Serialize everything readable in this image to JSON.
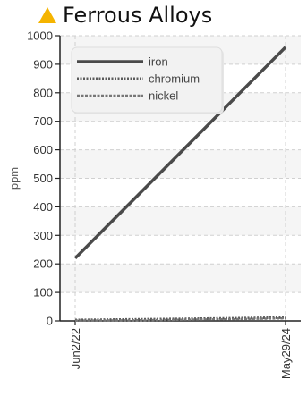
{
  "chart_data": {
    "type": "line",
    "title": "Ferrous Alloys",
    "title_icon": "warning-triangle-icon",
    "title_icon_color": "#f5b400",
    "ylabel": "ppm",
    "xlabel": "",
    "ylim": [
      0,
      1000
    ],
    "yticks": [
      0,
      100,
      200,
      300,
      400,
      500,
      600,
      700,
      800,
      900,
      1000
    ],
    "x_range": [
      "2022-06-02",
      "2024-05-29"
    ],
    "x_tick_labels": [
      "Jun2/22",
      "May29/24"
    ],
    "grid": true,
    "legend_position": "top-left",
    "series": [
      {
        "name": "iron",
        "color": "#4a4a4a",
        "style": "solid",
        "x": [
          "2022-06-02",
          "2024-05-29"
        ],
        "y": [
          220,
          960
        ]
      },
      {
        "name": "chromium",
        "color": "#5a5a5a",
        "style": "dotted",
        "x": [
          "2022-06-02",
          "2022-12-01",
          "2023-06-01",
          "2023-12-01",
          "2024-05-29"
        ],
        "y": [
          3,
          5,
          7,
          9,
          12
        ]
      },
      {
        "name": "nickel",
        "color": "#777777",
        "style": "dashed",
        "x": [
          "2022-06-02",
          "2022-12-01",
          "2023-06-01",
          "2023-12-01",
          "2024-05-29"
        ],
        "y": [
          1,
          2,
          4,
          6,
          9
        ]
      }
    ]
  }
}
